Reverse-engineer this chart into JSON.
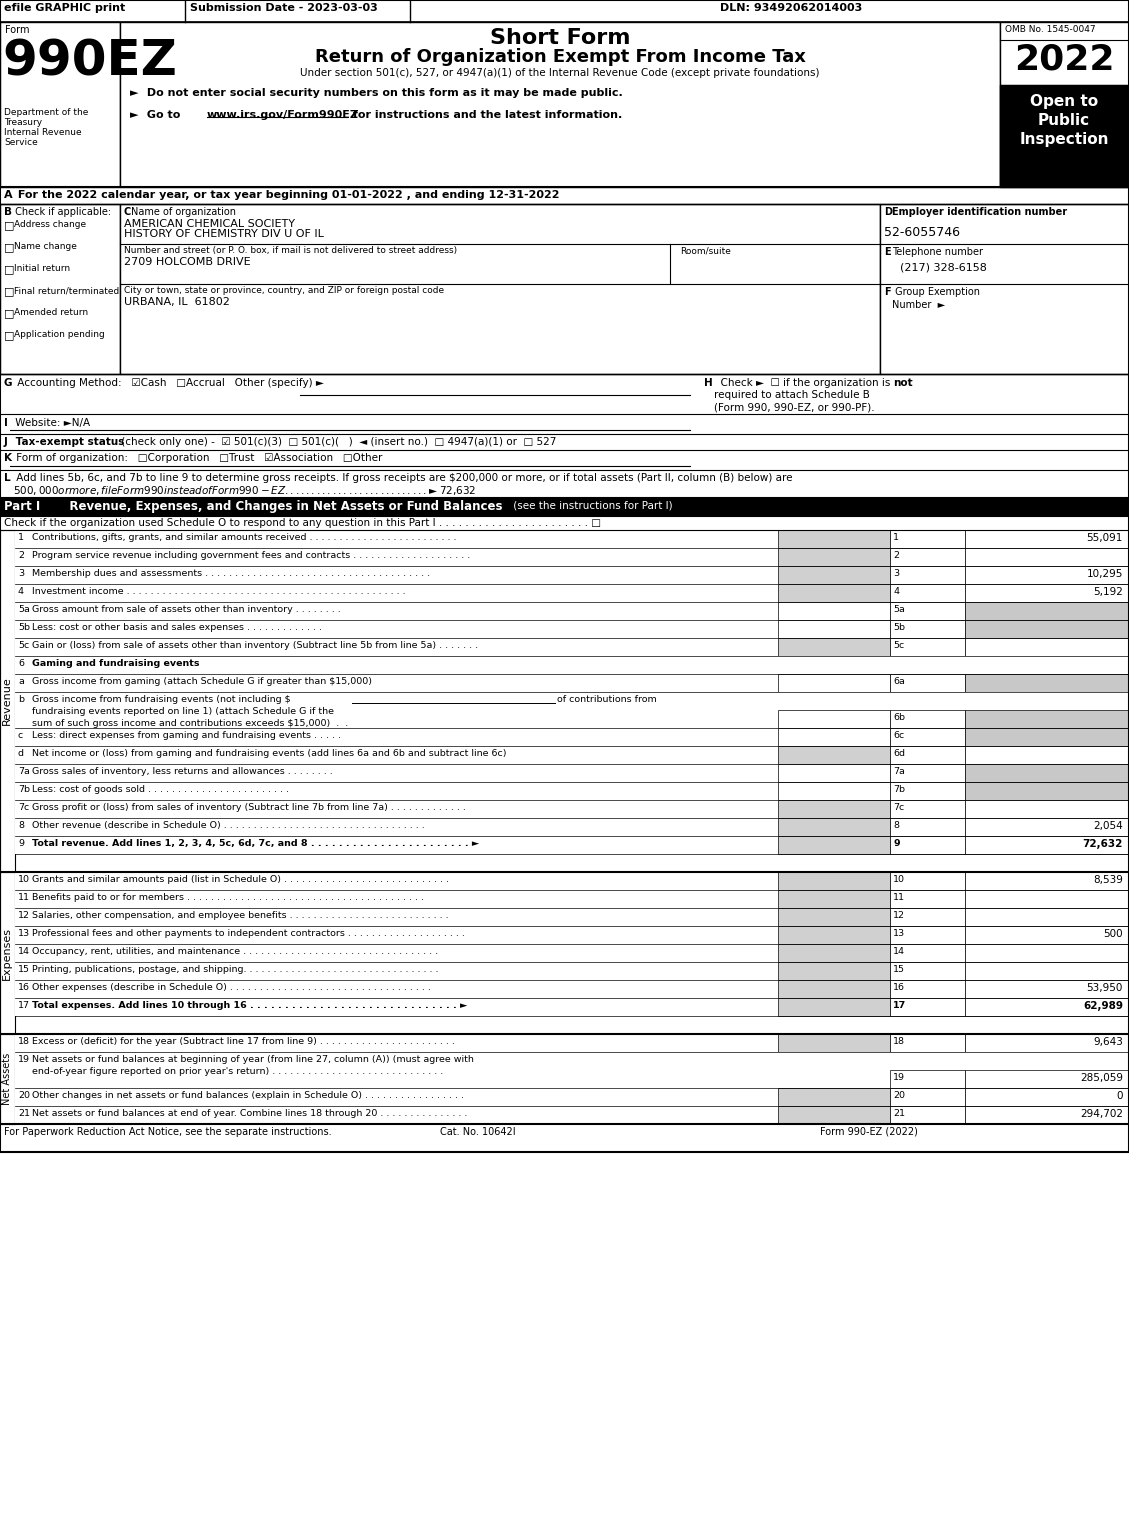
{
  "header_bar": {
    "efile_text": "efile GRAPHIC print",
    "submission_text": "Submission Date - 2023-03-03",
    "dln_text": "DLN: 93492062014003"
  },
  "form_title": {
    "form_label": "Form",
    "form_number": "990EZ",
    "short_form": "Short Form",
    "return_title": "Return of Organization Exempt From Income Tax",
    "under_section": "Under section 501(c), 527, or 4947(a)(1) of the Internal Revenue Code (except private foundations)",
    "dept_line1": "Department of the",
    "dept_line2": "Treasury",
    "dept_line3": "Internal Revenue",
    "dept_line4": "Service",
    "omb": "OMB No. 1545-0047",
    "year": "2022"
  },
  "section_a": "A  For the 2022 calendar year, or tax year beginning 01-01-2022 , and ending 12-31-2022",
  "check_applicable_items": [
    "Address change",
    "Name change",
    "Initial return",
    "Final return/terminated",
    "Amended return",
    "Application pending"
  ],
  "org_name1": "AMERICAN CHEMICAL SOCIETY",
  "org_name2": "HISTORY OF CHEMISTRY DIV U OF IL",
  "street": "2709 HOLCOMB DRIVE",
  "city": "URBANA, IL  61802",
  "ein": "52-6055746",
  "phone": "(217) 328-6158",
  "gray_color": "#c8c8c8",
  "dark_gray": "#d0d0d0",
  "black": "#000000",
  "white": "#ffffff",
  "footer_left": "For Paperwork Reduction Act Notice, see the separate instructions.",
  "footer_mid": "Cat. No. 10642I",
  "footer_right": "Form 990-EZ (2022)"
}
